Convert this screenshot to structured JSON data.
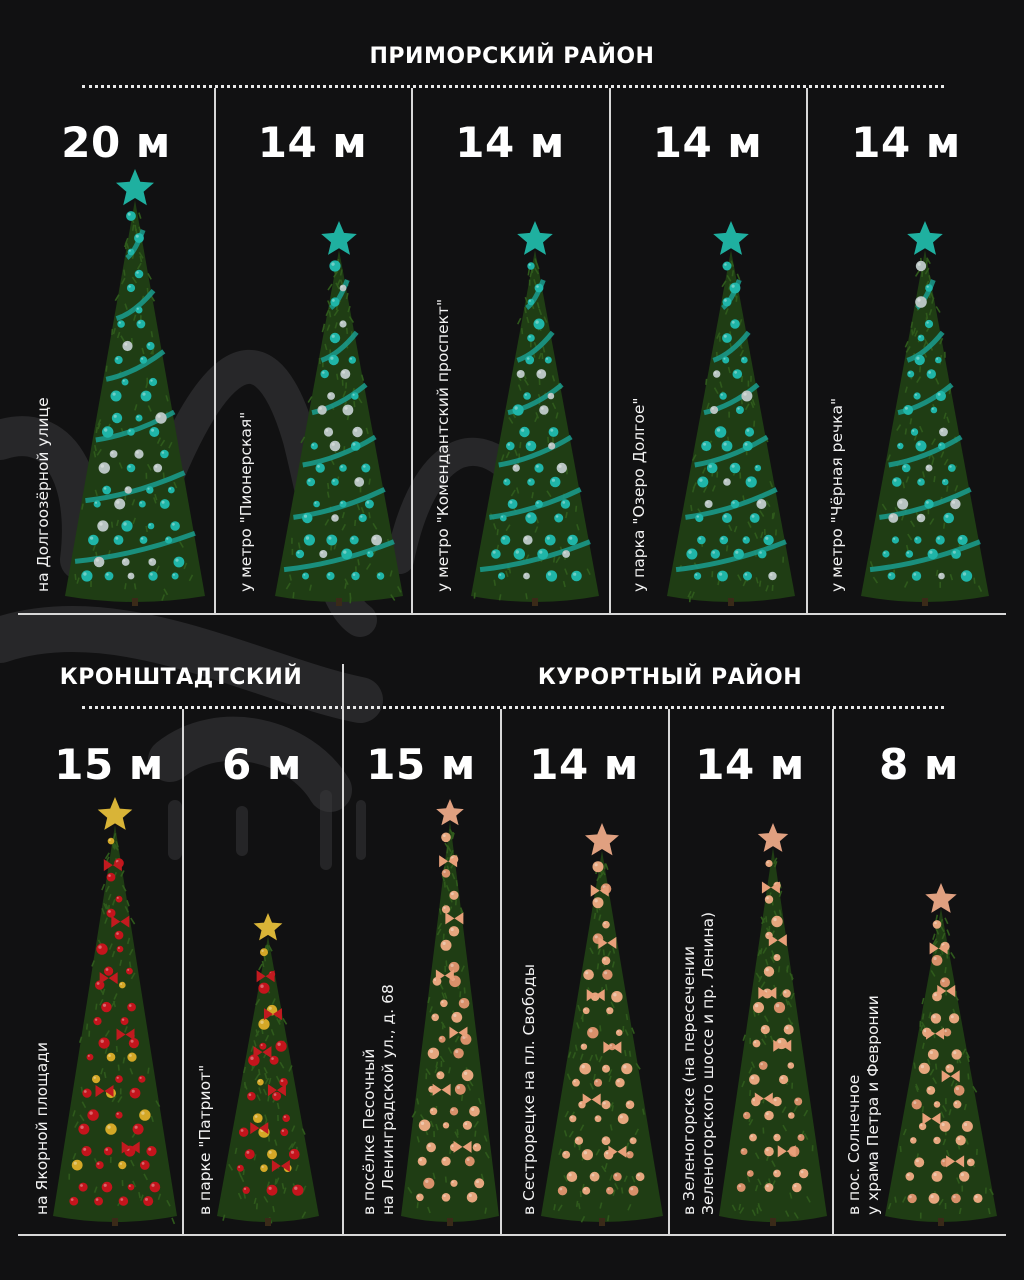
{
  "sections": {
    "primorsky": "ПРИМОРСКИЙ РАЙОН",
    "kronshtadt": "КРОНШТАДТСКИЙ",
    "kurortny": "КУРОРТНЫЙ РАЙОН"
  },
  "trees": [
    {
      "height": "20 м",
      "location": [
        "на Долгоозёрной улице"
      ],
      "theme": "teal"
    },
    {
      "height": "14 м",
      "location": [
        "у метро \"Пионерская\""
      ],
      "theme": "teal"
    },
    {
      "height": "14 м",
      "location": [
        "у метро \"Комендантский проспект\""
      ],
      "theme": "teal"
    },
    {
      "height": "14 м",
      "location": [
        "у парка \"Озеро Долгое\""
      ],
      "theme": "teal"
    },
    {
      "height": "14 м",
      "location": [
        "у метро \"Чёрная речка\""
      ],
      "theme": "teal"
    },
    {
      "height": "15 м",
      "location": [
        "на Якорной площади"
      ],
      "theme": "red"
    },
    {
      "height": "6 м",
      "location": [
        "в парке \"Патриот\""
      ],
      "theme": "red"
    },
    {
      "height": "15 м",
      "location": [
        "в посёлке Песочный",
        "на Ленинградской ул., д. 68"
      ],
      "theme": "copper"
    },
    {
      "height": "14 м",
      "location": [
        "в Сестрорецке на пл. Свободы"
      ],
      "theme": "copper"
    },
    {
      "height": "14 м",
      "location": [
        "в Зеленогорске (на пересечении",
        "Зеленогорского шоссе и пр. Ленина)"
      ],
      "theme": "copper"
    },
    {
      "height": "8 м",
      "location": [
        "в пос. Солнечное",
        "у храма Петра и Февронии"
      ],
      "theme": "copper"
    }
  ],
  "theme_colors": {
    "teal": {
      "ball": "#1fb5a8",
      "ball_alt": "#b8c4c2",
      "star": "#1fb0a0",
      "garland": "#1a9e8f"
    },
    "red": {
      "ball": "#c4141c",
      "ball_alt": "#d4a827",
      "star": "#d9b437",
      "bow": "#c21a1f"
    },
    "copper": {
      "ball": "#e6a67e",
      "ball_alt": "#d8906a",
      "star": "#e0a080",
      "bow": "#e8a07a"
    },
    "needles": "#1f3d14",
    "background": "#111112"
  }
}
